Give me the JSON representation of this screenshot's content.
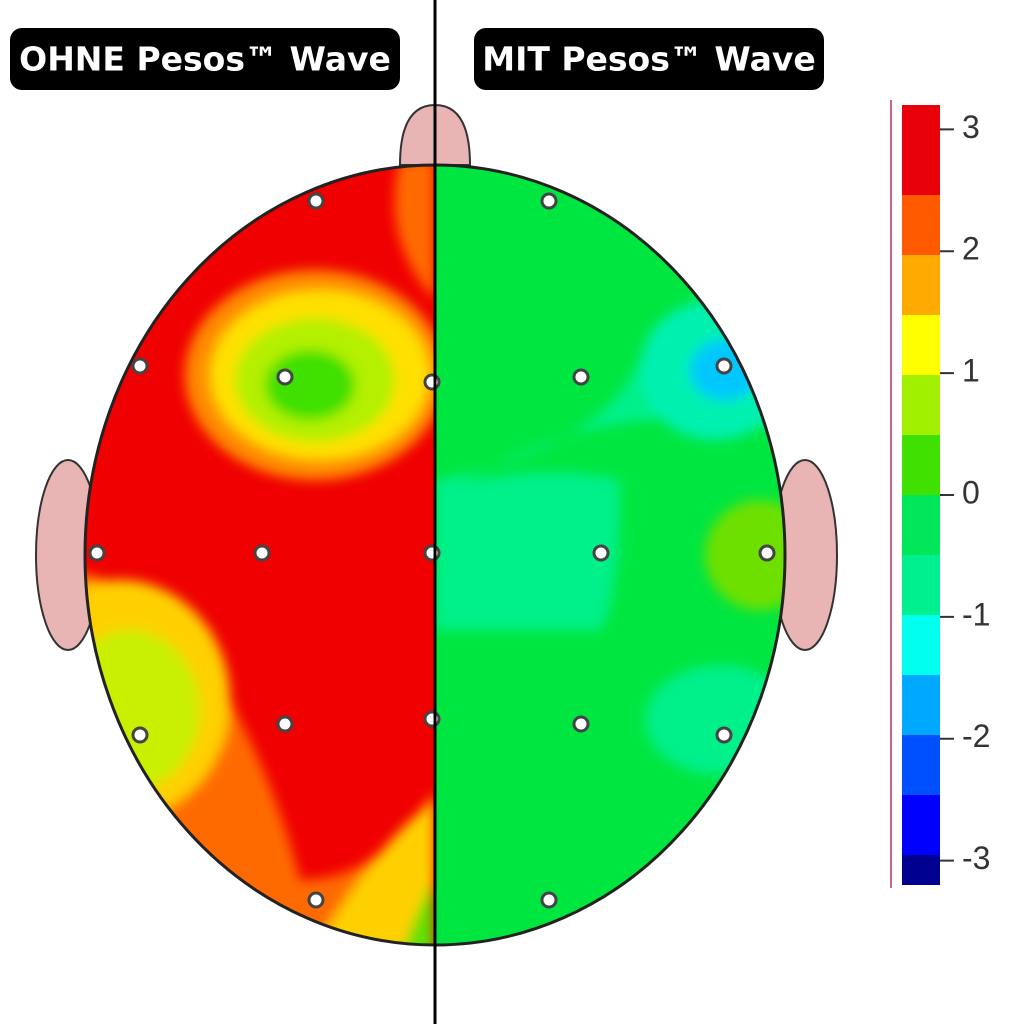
{
  "labels": {
    "left": "OHNE Pesos™ Wave",
    "right": "MIT Pesos™ Wave"
  },
  "colorbar": {
    "ticks": [
      3,
      2,
      1,
      0,
      -1,
      -2,
      -3
    ],
    "lim": [
      -3.2,
      3.2
    ]
  }
}
